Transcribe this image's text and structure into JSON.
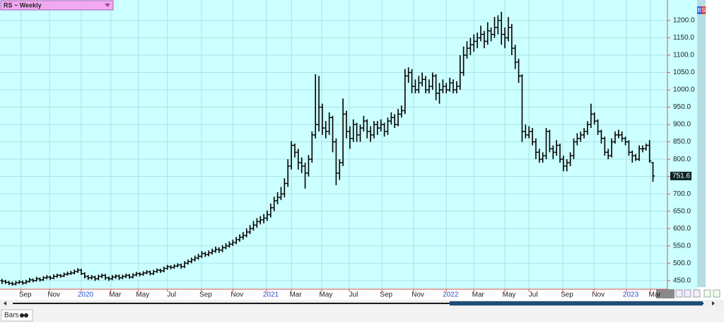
{
  "chart_data": {
    "type": "ohlc",
    "title": "RS ~ Weekly",
    "color": "#000000",
    "background": "#ccffff",
    "grid_color": "#a9e3e6",
    "axis_color": "#e05050",
    "xtick_year_color": "#2a4fd0",
    "grid": true,
    "ylim": [
      425,
      1255
    ],
    "yticks": [
      {
        "value": 450,
        "label": "450.0"
      },
      {
        "value": 500,
        "label": "500.0"
      },
      {
        "value": 550,
        "label": "550.0"
      },
      {
        "value": 600,
        "label": "600.0"
      },
      {
        "value": 650,
        "label": "650.0"
      },
      {
        "value": 700,
        "label": "700.0"
      },
      {
        "value": 750,
        "label": "750.0"
      },
      {
        "value": 800,
        "label": "800.0"
      },
      {
        "value": 850,
        "label": "850.0"
      },
      {
        "value": 900,
        "label": "900.0"
      },
      {
        "value": 950,
        "label": "950.0"
      },
      {
        "value": 1000,
        "label": "1000.0"
      },
      {
        "value": 1050,
        "label": "1050.0"
      },
      {
        "value": 1100,
        "label": "1100.0"
      },
      {
        "value": 1150,
        "label": "1150.0"
      },
      {
        "value": 1200,
        "label": "1200.0"
      }
    ],
    "xlim": [
      -0.6,
      193.2
    ],
    "xticks": [
      {
        "value": 5.5,
        "label": "Sep"
      },
      {
        "value": 13.8,
        "label": "Nov"
      },
      {
        "value": 23,
        "label": "2020"
      },
      {
        "value": 31.6,
        "label": "Mar"
      },
      {
        "value": 39.6,
        "label": "May"
      },
      {
        "value": 48,
        "label": "Jul"
      },
      {
        "value": 57.9,
        "label": "Sep"
      },
      {
        "value": 67,
        "label": "Nov"
      },
      {
        "value": 76.8,
        "label": "2021"
      },
      {
        "value": 84,
        "label": "Mar"
      },
      {
        "value": 92.8,
        "label": "May"
      },
      {
        "value": 100.8,
        "label": "Jul"
      },
      {
        "value": 110.3,
        "label": "Sep"
      },
      {
        "value": 119.5,
        "label": "Nov"
      },
      {
        "value": 129,
        "label": "2022"
      },
      {
        "value": 137,
        "label": "Mar"
      },
      {
        "value": 146,
        "label": "May"
      },
      {
        "value": 153,
        "label": "Jul"
      },
      {
        "value": 162.8,
        "label": "Sep"
      },
      {
        "value": 171.9,
        "label": "Nov"
      },
      {
        "value": 181.3,
        "label": "2023"
      },
      {
        "value": 188.3,
        "label": "Mar"
      }
    ],
    "ohlc": [
      [
        450,
        455,
        440,
        448
      ],
      [
        448,
        452,
        440,
        445
      ],
      [
        445,
        449,
        437,
        442
      ],
      [
        442,
        447,
        435,
        440
      ],
      [
        440,
        449,
        436,
        444
      ],
      [
        444,
        451,
        440,
        446
      ],
      [
        446,
        450,
        438,
        443
      ],
      [
        443,
        452,
        440,
        447
      ],
      [
        447,
        458,
        444,
        452
      ],
      [
        452,
        456,
        445,
        450
      ],
      [
        450,
        461,
        447,
        455
      ],
      [
        455,
        459,
        447,
        452
      ],
      [
        452,
        463,
        449,
        458
      ],
      [
        458,
        466,
        454,
        460
      ],
      [
        460,
        464,
        452,
        457
      ],
      [
        457,
        468,
        454,
        462
      ],
      [
        462,
        470,
        458,
        465
      ],
      [
        465,
        469,
        458,
        463
      ],
      [
        463,
        473,
        460,
        468
      ],
      [
        468,
        476,
        464,
        470
      ],
      [
        470,
        478,
        466,
        472
      ],
      [
        472,
        482,
        468,
        476
      ],
      [
        476,
        486,
        472,
        480
      ],
      [
        480,
        484,
        466,
        470
      ],
      [
        470,
        474,
        456,
        462
      ],
      [
        462,
        466,
        452,
        458
      ],
      [
        458,
        466,
        453,
        460
      ],
      [
        460,
        464,
        449,
        455
      ],
      [
        455,
        467,
        451,
        462
      ],
      [
        462,
        470,
        457,
        465
      ],
      [
        465,
        469,
        452,
        458
      ],
      [
        458,
        462,
        449,
        455
      ],
      [
        455,
        466,
        451,
        460
      ],
      [
        460,
        468,
        455,
        463
      ],
      [
        463,
        467,
        452,
        458
      ],
      [
        458,
        467,
        454,
        462
      ],
      [
        462,
        470,
        457,
        465
      ],
      [
        465,
        469,
        455,
        460
      ],
      [
        460,
        471,
        456,
        466
      ],
      [
        466,
        475,
        462,
        470
      ],
      [
        470,
        474,
        462,
        468
      ],
      [
        468,
        477,
        464,
        472
      ],
      [
        472,
        480,
        468,
        475
      ],
      [
        475,
        479,
        465,
        470
      ],
      [
        470,
        481,
        466,
        476
      ],
      [
        476,
        485,
        472,
        480
      ],
      [
        480,
        484,
        472,
        478
      ],
      [
        478,
        490,
        474,
        485
      ],
      [
        485,
        495,
        481,
        490
      ],
      [
        490,
        494,
        482,
        488
      ],
      [
        488,
        497,
        484,
        492
      ],
      [
        492,
        500,
        488,
        495
      ],
      [
        495,
        499,
        484,
        490
      ],
      [
        490,
        506,
        486,
        500
      ],
      [
        500,
        511,
        496,
        505
      ],
      [
        505,
        516,
        500,
        510
      ],
      [
        510,
        522,
        505,
        515
      ],
      [
        515,
        527,
        510,
        520
      ],
      [
        520,
        535,
        515,
        528
      ],
      [
        528,
        533,
        518,
        525
      ],
      [
        525,
        537,
        520,
        530
      ],
      [
        530,
        542,
        525,
        535
      ],
      [
        535,
        548,
        530,
        540
      ],
      [
        540,
        546,
        530,
        538
      ],
      [
        538,
        552,
        532,
        545
      ],
      [
        545,
        558,
        540,
        550
      ],
      [
        550,
        563,
        545,
        555
      ],
      [
        555,
        568,
        550,
        560
      ],
      [
        560,
        576,
        555,
        568
      ],
      [
        568,
        583,
        562,
        575
      ],
      [
        575,
        590,
        568,
        580
      ],
      [
        580,
        600,
        575,
        590
      ],
      [
        590,
        610,
        584,
        600
      ],
      [
        600,
        622,
        594,
        610
      ],
      [
        610,
        630,
        602,
        620
      ],
      [
        620,
        636,
        612,
        625
      ],
      [
        625,
        642,
        615,
        630
      ],
      [
        630,
        652,
        622,
        640
      ],
      [
        640,
        672,
        632,
        660
      ],
      [
        660,
        692,
        650,
        680
      ],
      [
        680,
        705,
        670,
        690
      ],
      [
        690,
        720,
        682,
        700
      ],
      [
        700,
        745,
        690,
        730
      ],
      [
        730,
        800,
        720,
        780
      ],
      [
        780,
        852,
        770,
        840
      ],
      [
        840,
        845,
        805,
        820
      ],
      [
        820,
        830,
        770,
        790
      ],
      [
        790,
        805,
        760,
        780
      ],
      [
        780,
        790,
        715,
        760
      ],
      [
        760,
        812,
        750,
        800
      ],
      [
        800,
        880,
        790,
        870
      ],
      [
        870,
        1045,
        860,
        900
      ],
      [
        900,
        1040,
        880,
        950
      ],
      [
        950,
        960,
        870,
        890
      ],
      [
        890,
        910,
        860,
        880
      ],
      [
        880,
        935,
        870,
        920
      ],
      [
        920,
        925,
        820,
        850
      ],
      [
        850,
        860,
        725,
        760
      ],
      [
        760,
        800,
        740,
        790
      ],
      [
        790,
        975,
        780,
        930
      ],
      [
        930,
        940,
        860,
        880
      ],
      [
        880,
        895,
        830,
        860
      ],
      [
        860,
        915,
        850,
        900
      ],
      [
        900,
        905,
        850,
        870
      ],
      [
        870,
        900,
        850,
        890
      ],
      [
        890,
        925,
        880,
        910
      ],
      [
        910,
        915,
        860,
        880
      ],
      [
        880,
        895,
        850,
        870
      ],
      [
        870,
        910,
        860,
        900
      ],
      [
        900,
        910,
        870,
        890
      ],
      [
        890,
        915,
        880,
        900
      ],
      [
        900,
        905,
        865,
        880
      ],
      [
        880,
        920,
        870,
        910
      ],
      [
        910,
        935,
        900,
        920
      ],
      [
        920,
        930,
        890,
        900
      ],
      [
        900,
        945,
        895,
        930
      ],
      [
        930,
        955,
        920,
        940
      ],
      [
        940,
        1060,
        930,
        1040
      ],
      [
        1040,
        1065,
        1020,
        1050
      ],
      [
        1050,
        1060,
        990,
        1010
      ],
      [
        1010,
        1030,
        990,
        1000
      ],
      [
        1000,
        1040,
        990,
        1020
      ],
      [
        1020,
        1050,
        1010,
        1030
      ],
      [
        1030,
        1040,
        990,
        1000
      ],
      [
        1000,
        1030,
        990,
        1010
      ],
      [
        1010,
        1050,
        1000,
        1040
      ],
      [
        1040,
        1045,
        970,
        990
      ],
      [
        990,
        1020,
        960,
        1000
      ],
      [
        1000,
        1030,
        990,
        1010
      ],
      [
        1010,
        1020,
        990,
        1000
      ],
      [
        1000,
        1035,
        995,
        1020
      ],
      [
        1020,
        1030,
        990,
        1000
      ],
      [
        1000,
        1025,
        990,
        1010
      ],
      [
        1010,
        1100,
        1000,
        1050
      ],
      [
        1050,
        1125,
        1040,
        1100
      ],
      [
        1100,
        1140,
        1090,
        1120
      ],
      [
        1120,
        1150,
        1100,
        1130
      ],
      [
        1130,
        1160,
        1110,
        1140
      ],
      [
        1140,
        1165,
        1120,
        1150
      ],
      [
        1150,
        1185,
        1140,
        1160
      ],
      [
        1160,
        1170,
        1120,
        1140
      ],
      [
        1140,
        1195,
        1130,
        1170
      ],
      [
        1170,
        1180,
        1140,
        1160
      ],
      [
        1160,
        1210,
        1150,
        1180
      ],
      [
        1180,
        1215,
        1160,
        1200
      ],
      [
        1200,
        1225,
        1130,
        1160
      ],
      [
        1160,
        1180,
        1120,
        1150
      ],
      [
        1150,
        1210,
        1140,
        1180
      ],
      [
        1180,
        1190,
        1100,
        1120
      ],
      [
        1120,
        1130,
        1060,
        1080
      ],
      [
        1080,
        1090,
        1020,
        1040
      ],
      [
        1040,
        1045,
        850,
        880
      ],
      [
        880,
        900,
        860,
        870
      ],
      [
        870,
        895,
        860,
        880
      ],
      [
        880,
        890,
        840,
        850
      ],
      [
        850,
        860,
        800,
        820
      ],
      [
        820,
        830,
        790,
        800
      ],
      [
        800,
        820,
        790,
        810
      ],
      [
        810,
        890,
        800,
        880
      ],
      [
        880,
        885,
        820,
        830
      ],
      [
        830,
        840,
        800,
        820
      ],
      [
        820,
        855,
        810,
        840
      ],
      [
        840,
        845,
        790,
        800
      ],
      [
        800,
        810,
        765,
        780
      ],
      [
        780,
        800,
        765,
        790
      ],
      [
        790,
        820,
        780,
        810
      ],
      [
        810,
        860,
        800,
        850
      ],
      [
        850,
        875,
        840,
        860
      ],
      [
        860,
        880,
        850,
        870
      ],
      [
        870,
        890,
        860,
        880
      ],
      [
        880,
        910,
        870,
        900
      ],
      [
        900,
        960,
        890,
        930
      ],
      [
        930,
        935,
        900,
        910
      ],
      [
        910,
        915,
        870,
        880
      ],
      [
        880,
        885,
        845,
        860
      ],
      [
        860,
        865,
        810,
        820
      ],
      [
        820,
        830,
        800,
        810
      ],
      [
        810,
        860,
        805,
        850
      ],
      [
        850,
        880,
        845,
        870
      ],
      [
        870,
        885,
        860,
        870
      ],
      [
        870,
        880,
        850,
        860
      ],
      [
        860,
        865,
        840,
        850
      ],
      [
        850,
        855,
        810,
        820
      ],
      [
        820,
        825,
        790,
        810
      ],
      [
        810,
        815,
        795,
        800
      ],
      [
        800,
        840,
        795,
        830
      ],
      [
        830,
        840,
        820,
        830
      ],
      [
        830,
        845,
        825,
        840
      ],
      [
        840,
        855,
        790,
        795
      ],
      [
        790,
        792,
        735,
        751.6
      ]
    ]
  },
  "ui": {
    "tab": "Bars",
    "badge": [
      "B",
      "S"
    ]
  }
}
